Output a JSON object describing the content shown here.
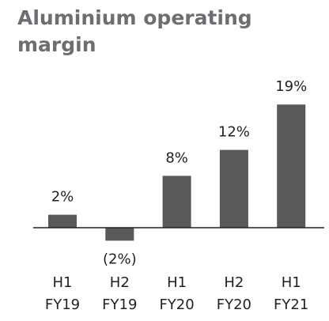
{
  "chart_data": {
    "type": "bar",
    "title": "Aluminium operating margin",
    "categories": [
      "H1 FY19",
      "H2 FY19",
      "H1 FY20",
      "H2 FY20",
      "H1 FY21"
    ],
    "values": [
      2,
      -2,
      8,
      12,
      19
    ],
    "value_labels": [
      "2%",
      "(2%)",
      "8%",
      "12%",
      "19%"
    ],
    "color": "#58595b",
    "ylim": [
      -5,
      20
    ]
  }
}
